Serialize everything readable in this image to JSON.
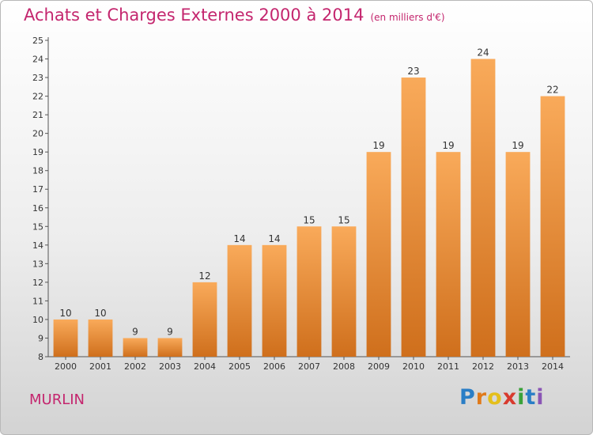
{
  "title": "Achats et Charges Externes 2000 à 2014",
  "unit": "(en milliers d'€)",
  "commune": "MURLIN",
  "logo": {
    "letters": [
      "P",
      "r",
      "o",
      "x",
      "i",
      "t",
      "i"
    ],
    "colors": [
      "#2a7ec6",
      "#e07a1a",
      "#e4bf1c",
      "#d83a2e",
      "#3aa23a",
      "#2a7ec6",
      "#8a55b5"
    ]
  },
  "colors": {
    "title": "#c4266e",
    "bar_light": "#f9aa5a",
    "bar_dark": "#cf6f1c"
  },
  "chart_data": {
    "type": "bar",
    "categories": [
      "2000",
      "2001",
      "2002",
      "2003",
      "2004",
      "2005",
      "2006",
      "2007",
      "2008",
      "2009",
      "2010",
      "2011",
      "2012",
      "2013",
      "2014"
    ],
    "values": [
      10,
      10,
      9,
      9,
      12,
      14,
      14,
      15,
      15,
      19,
      23,
      19,
      24,
      19,
      22
    ],
    "ylim": [
      8,
      25
    ],
    "yticks": [
      8,
      9,
      10,
      11,
      12,
      13,
      14,
      15,
      16,
      17,
      18,
      19,
      20,
      21,
      22,
      23,
      24,
      25
    ],
    "grid": false,
    "data_labels": true
  }
}
